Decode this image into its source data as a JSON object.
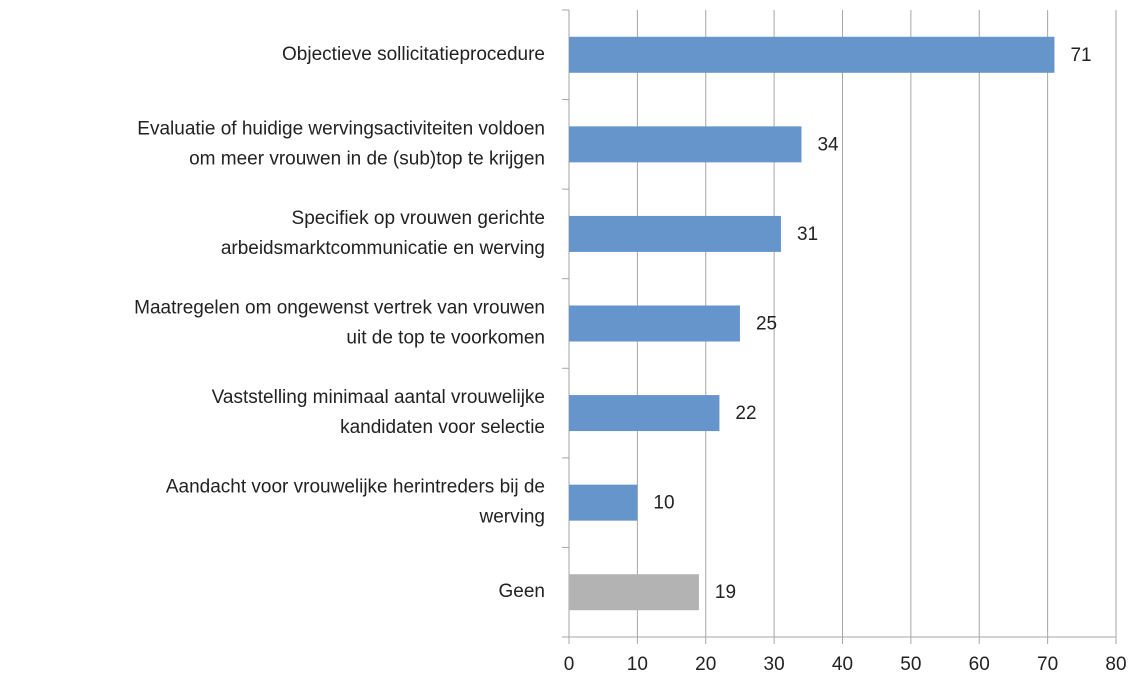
{
  "chart_data": {
    "type": "bar",
    "orientation": "horizontal",
    "categories": [
      [
        "Objectieve sollicitatieprocedure"
      ],
      [
        "Evaluatie of huidige wervingsactiviteiten voldoen",
        "om meer vrouwen in de (sub)top te krijgen"
      ],
      [
        "Specifiek op vrouwen gerichte",
        "arbeidsmarktcommunicatie en werving"
      ],
      [
        "Maatregelen om ongewenst vertrek van vrouwen",
        "uit de top te voorkomen"
      ],
      [
        "Vaststelling minimaal aantal vrouwelijke",
        "kandidaten voor selectie"
      ],
      [
        "Aandacht voor vrouwelijke herintreders bij de",
        "werving"
      ],
      [
        "Geen"
      ]
    ],
    "values": [
      71,
      34,
      31,
      25,
      22,
      10,
      19
    ],
    "colors": [
      "#6595cb",
      "#6595cb",
      "#6595cb",
      "#6595cb",
      "#6595cb",
      "#6595cb",
      "#b3b3b3"
    ],
    "xlim": [
      0,
      80
    ],
    "xticks": [
      0,
      10,
      20,
      30,
      40,
      50,
      60,
      70,
      80
    ],
    "grid": true
  }
}
